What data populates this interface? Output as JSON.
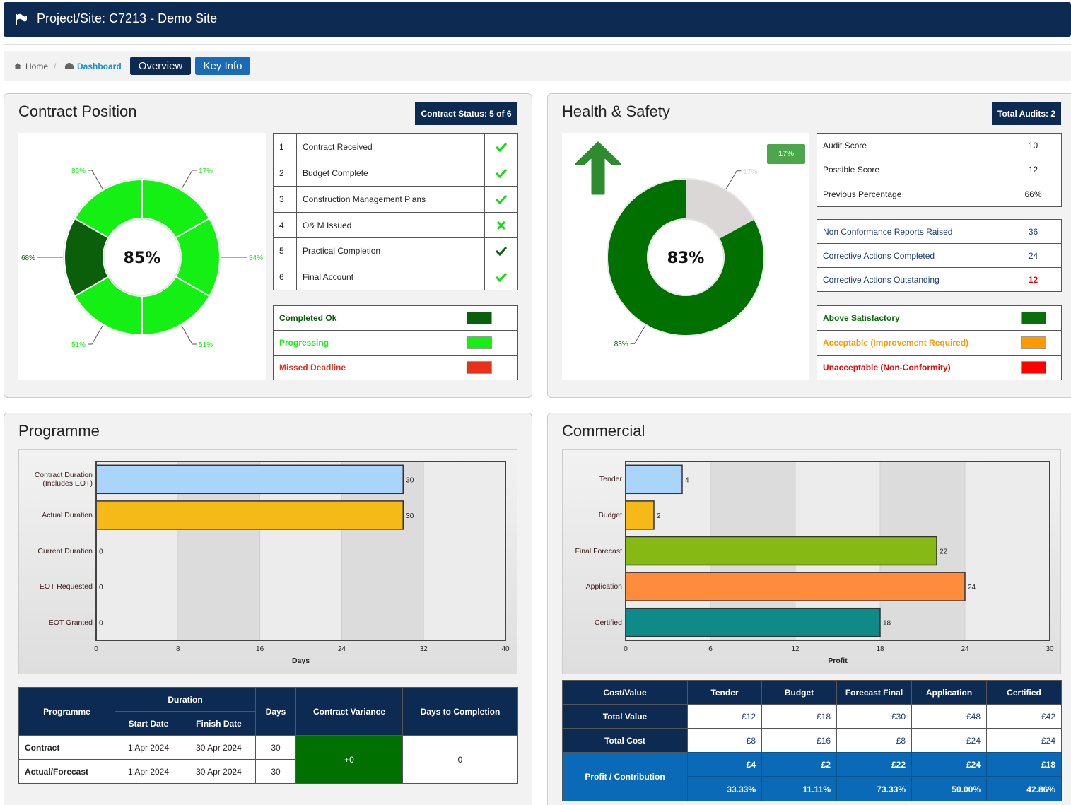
{
  "header": {
    "title": "Project/Site: C7213 - Demo Site"
  },
  "breadcrumb": {
    "home": "Home",
    "dashboard": "Dashboard",
    "tabs": [
      "Overview",
      "Key Info"
    ]
  },
  "contract": {
    "title": "Contract Position",
    "badge": "Contract Status: 5 of 6",
    "steps": [
      [
        "1",
        "Contract Received"
      ],
      [
        "2",
        "Budget Complete"
      ],
      [
        "3",
        "Construction Management Plans"
      ],
      [
        "4",
        "O& M Issued"
      ],
      [
        "5",
        "Practical Completion"
      ],
      [
        "6",
        "Final Account"
      ]
    ],
    "legend": [
      {
        "label": "Completed Ok",
        "color": "#0b5f0b"
      },
      {
        "label": "Progressing",
        "color": "#14f014"
      },
      {
        "label": "Missed Deadline",
        "color": "#e8301a"
      }
    ]
  },
  "safety": {
    "title": "Health & Safety",
    "badge": "Total Audits: 2",
    "trend": "17%",
    "scores": [
      [
        "Audit Score",
        10
      ],
      [
        "Possible Score",
        12
      ],
      [
        "Previous Percentage",
        "66%"
      ]
    ],
    "actions": [
      [
        "Non Conformance Reports Raised",
        36
      ],
      [
        "Corrective Actions Completed",
        24
      ],
      [
        "Corrective Actions Outstanding",
        12
      ]
    ],
    "legend": [
      {
        "label": "Above Satisfactory",
        "color": "#0a6e0a"
      },
      {
        "label": "Acceptable (Improvement Required)",
        "color": "#ff9900"
      },
      {
        "label": "Unacceptable (Non-Conformity)",
        "color": "#ff0000"
      }
    ]
  },
  "programme": {
    "title": "Programme",
    "table": {
      "header": [
        "Programme",
        "Duration",
        "Days",
        "Contract Variance",
        "Days to Completion"
      ],
      "subheader": [
        "Start Date",
        "Finish Date"
      ],
      "rows": [
        [
          "Contract",
          "1 Apr 2024",
          "30 Apr 2024",
          30
        ],
        [
          "Actual/Forecast",
          "1 Apr 2024",
          "30 Apr 2024",
          30
        ]
      ],
      "variance": "+0",
      "days_to_completion": 0
    }
  },
  "commercial": {
    "title": "Commercial",
    "table": {
      "header": [
        "Cost/Value",
        "Tender",
        "Budget",
        "Forecast Final",
        "Application",
        "Certified"
      ],
      "rows": [
        [
          "Total Value",
          "£12",
          "£18",
          "£30",
          "£48",
          "£42"
        ],
        [
          "Total Cost",
          "£8",
          "£16",
          "£8",
          "£24",
          "£24"
        ]
      ],
      "profit": {
        "label": "Profit / Contribution",
        "values": [
          "£4",
          "£2",
          "£22",
          "£24",
          "£18"
        ],
        "margins": [
          "33.33%",
          "11.11%",
          "73.33%",
          "50.00%",
          "42.86%"
        ]
      }
    }
  },
  "chart_data": [
    {
      "type": "donut",
      "center_label": "85%",
      "values": [
        17,
        17,
        17,
        17,
        17,
        17
      ],
      "colors": [
        "#14f014",
        "#14f014",
        "#14f014",
        "#14f014",
        "#0b5f0b",
        "#14f014"
      ],
      "labels": [
        "17%",
        "34%",
        "51%",
        "51%",
        "68%",
        "85%"
      ]
    },
    {
      "type": "donut",
      "center_label": "83%",
      "values": [
        17,
        83
      ],
      "colors": [
        "#dcd7d7",
        "#007000"
      ],
      "labels": [
        "17%",
        "83%"
      ]
    },
    {
      "type": "hbar",
      "categories": [
        "Contract Duration\n(Includes EOT)",
        "Actual Duration",
        "Current Duration",
        "EOT Requested",
        "EOT Granted"
      ],
      "values": [
        30,
        30,
        0,
        0,
        0
      ],
      "colors": [
        "#aad4fa",
        "#f5b918",
        "#333333",
        "#333333",
        "#333333"
      ],
      "xlim": [
        0,
        40
      ],
      "xticks": [
        0,
        8,
        16,
        24,
        32,
        40
      ],
      "xlabel": "Days"
    },
    {
      "type": "hbar",
      "categories": [
        "Tender",
        "Budget",
        "Final Forecast",
        "Application",
        "Certified"
      ],
      "values": [
        4,
        2,
        22,
        24,
        18
      ],
      "colors": [
        "#aad4fa",
        "#f5b918",
        "#86b914",
        "#ff8c3c",
        "#0e8a88"
      ],
      "xlim": [
        0,
        30
      ],
      "xticks": [
        0,
        6,
        12,
        18,
        24,
        30
      ],
      "xlabel": "Profit"
    }
  ]
}
